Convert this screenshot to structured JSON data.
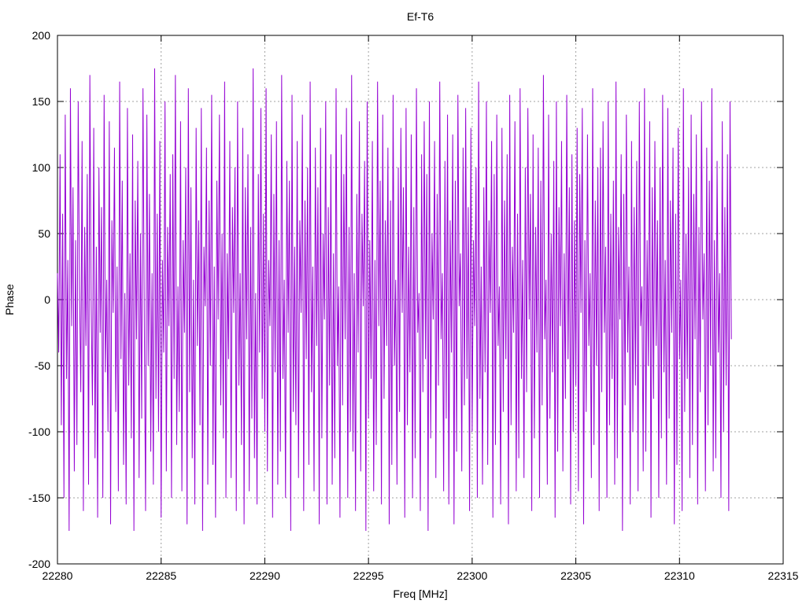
{
  "chart_data": {
    "type": "line",
    "title": "Ef-T6",
    "xlabel": "Freq [MHz]",
    "ylabel": "Phase",
    "xlim": [
      22280,
      22315
    ],
    "ylim": [
      -200,
      200
    ],
    "x_ticks": [
      "22280",
      "22285",
      "22290",
      "22295",
      "22300",
      "22305",
      "22310",
      "22315"
    ],
    "y_ticks": [
      "200",
      "150",
      "100",
      "50",
      "0",
      "-50",
      "-100",
      "-150",
      "-200"
    ],
    "grid": true,
    "series": [
      {
        "color": "#9400d3",
        "x_start": 22280.0,
        "x_step": 0.0625,
        "values": [
          20,
          -40,
          110,
          -95,
          65,
          -150,
          140,
          -60,
          30,
          -175,
          160,
          -20,
          85,
          -130,
          45,
          -110,
          150,
          10,
          -70,
          120,
          -160,
          55,
          -35,
          95,
          -140,
          170,
          -5,
          -80,
          130,
          -120,
          40,
          -165,
          100,
          -25,
          70,
          -150,
          155,
          -55,
          15,
          -100,
          135,
          -170,
          60,
          -10,
          115,
          -85,
          25,
          -145,
          165,
          -45,
          90,
          -125,
          5,
          -155,
          145,
          -65,
          35,
          -105,
          125,
          -175,
          75,
          -30,
          105,
          -135,
          50,
          -90,
          160,
          -15,
          -160,
          140,
          -50,
          80,
          -115,
          20,
          -140,
          175,
          -75,
          65,
          -100,
          120,
          -165,
          30,
          -40,
          150,
          -130,
          55,
          -20,
          95,
          -150,
          110,
          -60,
          170,
          -110,
          10,
          -85,
          135,
          -145,
          45,
          -25,
          100,
          -170,
          160,
          -70,
          85,
          -120,
          15,
          -155,
          130,
          -35,
          60,
          -95,
          145,
          -175,
          40,
          -5,
          115,
          -140,
          75,
          -50,
          155,
          -125,
          25,
          -165,
          90,
          -15,
          140,
          -80,
          50,
          -105,
          165,
          -150,
          35,
          -45,
          120,
          -135,
          70,
          -10,
          100,
          -160,
          150,
          -65,
          20,
          -110,
          130,
          -170,
          85,
          -30,
          110,
          -145,
          55,
          -90,
          175,
          -120,
          5,
          -155,
          95,
          -40,
          145,
          -75,
          65,
          -100,
          160,
          -130,
          30,
          -20,
          125,
          -165,
          80,
          -55,
          135,
          -140,
          45,
          -115,
          170,
          -60,
          15,
          -150,
          105,
          -25,
          90,
          -175,
          155,
          -85,
          40,
          -95,
          120,
          -135,
          60,
          -10,
          140,
          -160,
          75,
          -45,
          100,
          -125,
          165,
          -70,
          25,
          -145,
          115,
          -35,
          85,
          -170,
          130,
          -105,
          50,
          -15,
          150,
          -155,
          70,
          -65,
          110,
          -140,
          35,
          -120,
          160,
          -50,
          10,
          -165,
          125,
          -80,
          95,
          -30,
          145,
          -150,
          55,
          -100,
          170,
          -115,
          20,
          -160,
          80,
          -40,
          135,
          -130,
          65,
          -5,
          105,
          -175,
          150,
          -90,
          45,
          -60,
          120,
          -145,
          30,
          -110,
          165,
          -20,
          90,
          -155,
          140,
          -75,
          60,
          -35,
          115,
          -170,
          75,
          -125,
          155,
          -50,
          15,
          -140,
          100,
          -85,
          130,
          -10,
          85,
          -165,
          145,
          -95,
          40,
          -55,
          125,
          -150,
          70,
          -120,
          160,
          -25,
          5,
          -160,
          110,
          -70,
          135,
          -45,
          95,
          -175,
          150,
          -105,
          50,
          -15,
          120,
          -135,
          80,
          -65,
          165,
          -30,
          20,
          -145,
          105,
          -90,
          140,
          -155,
          60,
          -40,
          125,
          -170,
          90,
          -115,
          155,
          -5,
          35,
          -130,
          115,
          -80,
          145,
          -60,
          70,
          -160,
          130,
          -100,
          45,
          -20,
          100,
          -150,
          165,
          -75,
          25,
          -140,
          85,
          -55,
          150,
          -125,
          60,
          -10,
          120,
          -165,
          95,
          -110,
          140,
          -35,
          10,
          -155,
          130,
          -85,
          75,
          -45,
          110,
          -170,
          155,
          -95,
          40,
          -25,
          135,
          -145,
          65,
          -120,
          160,
          -60,
          30,
          -135,
          100,
          -70,
          145,
          -15,
          80,
          -160,
          125,
          -105,
          55,
          -40,
          115,
          -150,
          90,
          -80,
          170,
          -30,
          15,
          -140,
          140,
          -90,
          50,
          -55,
          105,
          -165,
          150,
          -115,
          70,
          -20,
          120,
          -130,
          35,
          -75,
          155,
          -45,
          85,
          -155,
          110,
          -100,
          60,
          -65,
          130,
          -145,
          95,
          -10,
          145,
          -170,
          45,
          -85,
          125,
          -35,
          20,
          -135,
          160,
          -110,
          75,
          -50,
          100,
          -160,
          115,
          -70,
          135,
          -25,
          40,
          -150,
          150,
          -95,
          65,
          -60,
          90,
          -140,
          165,
          -120,
          55,
          -15,
          110,
          -175,
          80,
          -80,
          140,
          -40,
          25,
          -155,
          120,
          -100,
          70,
          -65,
          105,
          -145,
          150,
          -20,
          10,
          -130,
          160,
          -115,
          45,
          -50,
          135,
          -165,
          85,
          -75,
          120,
          -35,
          60,
          -150,
          100,
          -105,
          155,
          -55,
          30,
          -140,
          145,
          -90,
          75,
          -25,
          115,
          -170,
          65,
          -125,
          130,
          -45,
          15,
          -160,
          160,
          -85,
          50,
          -60,
          100,
          -135,
          140,
          -110,
          80,
          -30,
          125,
          -155,
          55,
          -70,
          150,
          -15,
          35,
          -145,
          115,
          -95,
          90,
          -50,
          160,
          -130,
          45,
          -120,
          105,
          -40,
          20,
          -150,
          135,
          -100,
          70,
          -65,
          110,
          -160,
          150,
          -30
        ]
      }
    ]
  }
}
